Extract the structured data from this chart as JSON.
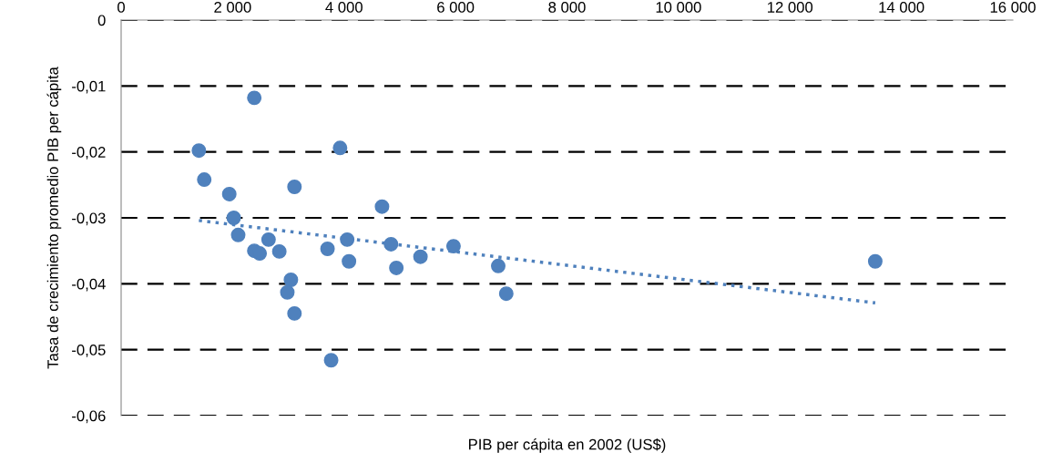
{
  "chart_data": {
    "type": "scatter",
    "xlabel": "PIB per cápita en 2002 (US$)",
    "ylabel": "Tasa de crecimiento promedio PIB per cápita",
    "series": [
      {
        "color": "#4f81bd",
        "marker": "circle",
        "x": [
          1395,
          1491,
          1940,
          2020,
          2100,
          2389,
          2389,
          2485,
          2645,
          2838,
          3110,
          3046,
          2982,
          3110,
          3703,
          3768,
          3928,
          4056,
          4088,
          4681,
          4842,
          4938,
          5371,
          5964,
          6766,
          6910,
          13531
        ],
        "values": [
          -0.0198,
          -0.0242,
          -0.0264,
          -0.03,
          -0.0326,
          -0.0118,
          -0.035,
          -0.0354,
          -0.0333,
          -0.0351,
          -0.0253,
          -0.0394,
          -0.0413,
          -0.0445,
          -0.0347,
          -0.0516,
          -0.0194,
          -0.0333,
          -0.0366,
          -0.0283,
          -0.034,
          -0.0376,
          -0.0359,
          -0.0343,
          -0.0373,
          -0.0415,
          -0.0366
        ]
      },
      {
        "type": "line",
        "color": "#4f81bd",
        "line_style": "dotted",
        "marker": "none",
        "x": [
          1395,
          13531
        ],
        "values": [
          -0.0304,
          -0.0429
        ]
      }
    ],
    "xlim": [
      0,
      16000
    ],
    "xticks": [
      0,
      {
        "value": 2000,
        "label": "2 000"
      },
      {
        "value": 4000,
        "label": "4 000"
      },
      {
        "value": 6000,
        "label": "6 000"
      },
      {
        "value": 8000,
        "label": "8 000"
      },
      {
        "value": 10000,
        "label": "10 000"
      },
      {
        "value": 12000,
        "label": "12 000"
      },
      {
        "value": 14000,
        "label": "14 000"
      },
      {
        "value": 16000,
        "label": "16 000"
      }
    ],
    "ylim": [
      -0.06,
      0
    ],
    "yticks": [
      0,
      {
        "value": -0.01,
        "label": "-0,01"
      },
      {
        "value": -0.02,
        "label": "-0,02"
      },
      {
        "value": -0.03,
        "label": "-0,03"
      },
      {
        "value": -0.04,
        "label": "-0,04"
      },
      {
        "value": -0.05,
        "label": "-0,05"
      },
      {
        "value": -0.06,
        "label": "-0,06"
      }
    ],
    "grid": "y",
    "legend": false
  }
}
